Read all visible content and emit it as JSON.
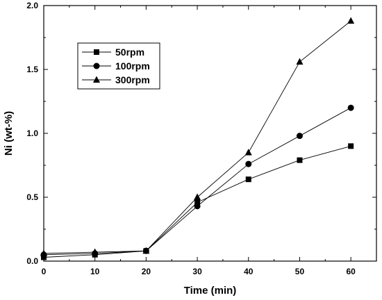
{
  "chart_data": {
    "type": "line",
    "title": "",
    "xlabel": "Time (min)",
    "ylabel": "Ni (wt-%)",
    "xlim": [
      0,
      65
    ],
    "ylim": [
      0.0,
      2.0
    ],
    "x_ticks": [
      0,
      10,
      20,
      30,
      40,
      50,
      60
    ],
    "y_ticks": [
      0.0,
      0.5,
      1.0,
      1.5,
      2.0
    ],
    "y_tick_labels": [
      "0.0",
      "0.5",
      "1.0",
      "1.5",
      "2.0"
    ],
    "grid": false,
    "legend_position": "top-left",
    "series": [
      {
        "name": "50rpm",
        "marker": "square",
        "x": [
          0,
          10,
          20,
          30,
          40,
          50,
          60
        ],
        "y": [
          0.03,
          0.05,
          0.08,
          0.46,
          0.64,
          0.79,
          0.9
        ]
      },
      {
        "name": "100rpm",
        "marker": "circle",
        "x": [
          0,
          10,
          20,
          30,
          40,
          50,
          60
        ],
        "y": [
          0.05,
          0.06,
          0.08,
          0.43,
          0.76,
          0.98,
          1.2
        ]
      },
      {
        "name": "300rpm",
        "marker": "triangle",
        "x": [
          0,
          10,
          20,
          30,
          40,
          50,
          60
        ],
        "y": [
          0.06,
          0.07,
          0.08,
          0.5,
          0.85,
          1.56,
          1.88
        ]
      }
    ]
  }
}
